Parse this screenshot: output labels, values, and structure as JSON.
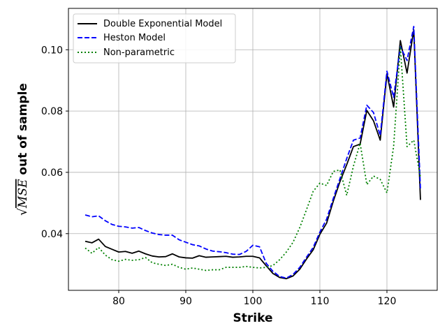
{
  "chart_data": {
    "type": "line",
    "title": "",
    "xlabel": "Strike",
    "ylabel_prefix": "√",
    "ylabel_math": "MSE",
    "ylabel_suffix": " out of sample",
    "xlim": [
      72.5,
      127.5
    ],
    "ylim": [
      0.0215,
      0.1135
    ],
    "xticks": [
      80,
      90,
      100,
      110,
      120
    ],
    "yticks": [
      0.04,
      0.06,
      0.08,
      0.1
    ],
    "xtick_labels": [
      "80",
      "90",
      "100",
      "110",
      "120"
    ],
    "ytick_labels": [
      "0.04",
      "0.06",
      "0.08",
      "0.10"
    ],
    "grid": true,
    "legend_position": "top-left",
    "x": [
      75,
      76,
      77,
      78,
      79,
      80,
      81,
      82,
      83,
      84,
      85,
      86,
      87,
      88,
      89,
      90,
      91,
      92,
      93,
      94,
      95,
      96,
      97,
      98,
      99,
      100,
      101,
      102,
      103,
      104,
      105,
      106,
      107,
      108,
      109,
      110,
      111,
      112,
      113,
      114,
      115,
      116,
      117,
      118,
      119,
      120,
      121,
      122,
      123,
      124,
      125
    ],
    "series": [
      {
        "name": "Double Exponential Model",
        "color": "#000000",
        "style": "solid",
        "values": [
          0.0375,
          0.037,
          0.0382,
          0.0358,
          0.0349,
          0.034,
          0.0342,
          0.0336,
          0.0343,
          0.0334,
          0.0327,
          0.0324,
          0.0325,
          0.0334,
          0.0324,
          0.0321,
          0.032,
          0.0328,
          0.0323,
          0.0324,
          0.0325,
          0.0326,
          0.0323,
          0.0324,
          0.0326,
          0.0326,
          0.0321,
          0.0295,
          0.027,
          0.0257,
          0.0253,
          0.0262,
          0.0284,
          0.0317,
          0.0347,
          0.0398,
          0.0434,
          0.0506,
          0.057,
          0.0625,
          0.0684,
          0.0692,
          0.0802,
          0.0768,
          0.0705,
          0.0922,
          0.0813,
          0.103,
          0.0924,
          0.1065,
          0.051
        ]
      },
      {
        "name": "Heston Model",
        "color": "#0000ff",
        "style": "dashed",
        "values": [
          0.0461,
          0.0455,
          0.0458,
          0.0442,
          0.043,
          0.0424,
          0.0422,
          0.0418,
          0.042,
          0.041,
          0.0402,
          0.0397,
          0.0395,
          0.0395,
          0.038,
          0.0372,
          0.0364,
          0.036,
          0.035,
          0.0343,
          0.0341,
          0.0338,
          0.0333,
          0.0332,
          0.0342,
          0.0362,
          0.0357,
          0.0303,
          0.0277,
          0.026,
          0.0255,
          0.0267,
          0.029,
          0.0323,
          0.0355,
          0.0405,
          0.0447,
          0.0515,
          0.058,
          0.0645,
          0.0705,
          0.0712,
          0.0819,
          0.0795,
          0.072,
          0.093,
          0.0845,
          0.101,
          0.0965,
          0.1076,
          0.0545
        ]
      },
      {
        "name": "Non-parametric",
        "color": "#008000",
        "style": "dotted",
        "values": [
          0.0353,
          0.0336,
          0.0355,
          0.033,
          0.0315,
          0.031,
          0.0316,
          0.0313,
          0.0315,
          0.0322,
          0.0305,
          0.03,
          0.0296,
          0.03,
          0.029,
          0.0284,
          0.0288,
          0.0284,
          0.028,
          0.0282,
          0.0282,
          0.029,
          0.029,
          0.029,
          0.0293,
          0.029,
          0.0288,
          0.029,
          0.0296,
          0.0315,
          0.034,
          0.0372,
          0.042,
          0.0478,
          0.0538,
          0.0565,
          0.0557,
          0.0603,
          0.0608,
          0.0525,
          0.062,
          0.0695,
          0.056,
          0.0588,
          0.0577,
          0.0533,
          0.0685,
          0.101,
          0.0684,
          0.0705,
          0.0584
        ]
      }
    ]
  }
}
